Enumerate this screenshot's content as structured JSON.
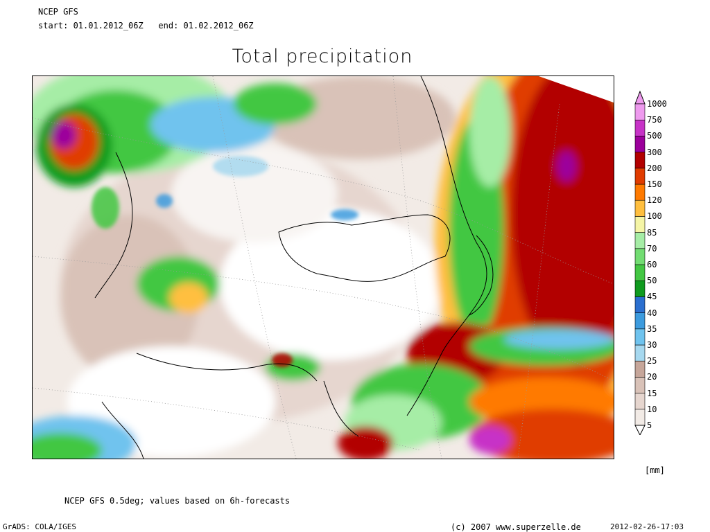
{
  "header": {
    "model": "NCEP GFS",
    "period": "start: 01.01.2012_06Z   end: 01.02.2012_06Z"
  },
  "title": "Total precipitation",
  "legend": {
    "unit": "[mm]",
    "levels": [
      "5",
      "10",
      "15",
      "20",
      "25",
      "30",
      "35",
      "40",
      "45",
      "50",
      "60",
      "70",
      "85",
      "100",
      "120",
      "150",
      "200",
      "300",
      "500",
      "750",
      "1000"
    ],
    "colors": [
      "#f2ebe6",
      "#e6d6cf",
      "#d9c2b8",
      "#c6a69a",
      "#a6d8ef",
      "#6fc3ee",
      "#3c9bde",
      "#2b6fcf",
      "#109b1f",
      "#43c743",
      "#72dd72",
      "#a6eda6",
      "#f5f5a6",
      "#ffbf3f",
      "#ff7a00",
      "#e03c00",
      "#b20000",
      "#9c009c",
      "#c733c7",
      "#ee9aee"
    ]
  },
  "footer": {
    "note": "NCEP GFS 0.5deg; values based on 6h-forecasts",
    "grads": "GrADS: COLA/IGES",
    "copyright": "(c) 2007 www.superzelle.de",
    "timestamp": "2012-02-26-17:03"
  }
}
